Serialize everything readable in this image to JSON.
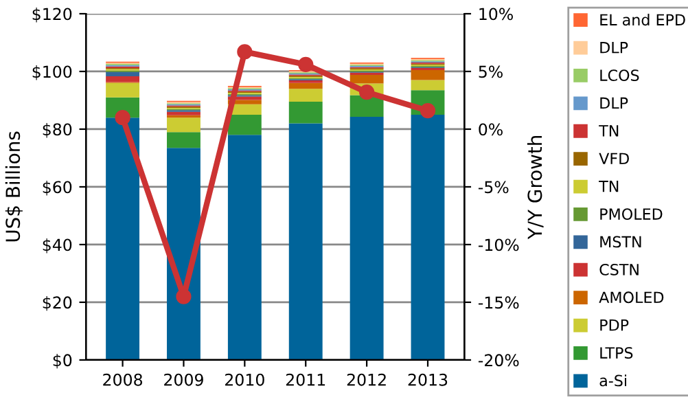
{
  "chart_data": {
    "type": "bar",
    "stacked": true,
    "categories": [
      "2008",
      "2009",
      "2010",
      "2011",
      "2012",
      "2013"
    ],
    "ylabel": "US$ Billions",
    "y2label": "Y/Y Growth",
    "ylim": [
      0,
      120
    ],
    "yticks": [
      {
        "value": 0,
        "label": "$0"
      },
      {
        "value": 20,
        "label": "$20"
      },
      {
        "value": 40,
        "label": "$40"
      },
      {
        "value": 60,
        "label": "$60"
      },
      {
        "value": 80,
        "label": "$80"
      },
      {
        "value": 100,
        "label": "$100"
      },
      {
        "value": 120,
        "label": "$120"
      }
    ],
    "y2lim": [
      -20,
      10
    ],
    "y2ticks": [
      {
        "value": -20,
        "label": "-20%"
      },
      {
        "value": -15,
        "label": "-15%"
      },
      {
        "value": -10,
        "label": "-10%"
      },
      {
        "value": -5,
        "label": "-5%"
      },
      {
        "value": 0,
        "label": "0%"
      },
      {
        "value": 5,
        "label": "5%"
      },
      {
        "value": 10,
        "label": "10%"
      }
    ],
    "grid": "y",
    "legend": "right",
    "series": [
      {
        "name": "a-Si",
        "color": "#00649a",
        "values": [
          84,
          73.5,
          78,
          82,
          84.3,
          85
        ]
      },
      {
        "name": "LTPS",
        "color": "#339933",
        "values": [
          7,
          5.5,
          7,
          7.5,
          7.5,
          8.5
        ]
      },
      {
        "name": "PDP",
        "color": "#cccc33",
        "values": [
          5,
          5,
          3.6,
          4.5,
          4,
          3.5
        ]
      },
      {
        "name": "AMOLED",
        "color": "#cc6600",
        "values": [
          0.3,
          0.8,
          1.5,
          2,
          3,
          3.5
        ]
      },
      {
        "name": "CSTN",
        "color": "#cc3333",
        "values": [
          2,
          1.2,
          1.2,
          0.9,
          0.8,
          0.7
        ]
      },
      {
        "name": "MSTN",
        "color": "#336699",
        "values": [
          1.5,
          0.6,
          0.5,
          0.4,
          0.3,
          0.3
        ]
      },
      {
        "name": "PMOLED",
        "color": "#669933",
        "values": [
          0.5,
          0.4,
          0.4,
          0.4,
          0.4,
          0.4
        ]
      },
      {
        "name": "TN",
        "color": "#cccc33",
        "values": [
          0.5,
          0.4,
          0.4,
          0.4,
          0.4,
          0.4
        ]
      },
      {
        "name": "VFD",
        "color": "#996600",
        "values": [
          0.4,
          0.4,
          0.4,
          0.4,
          0.4,
          0.4
        ]
      },
      {
        "name": "TN",
        "color": "#cc3333",
        "values": [
          0.5,
          0.4,
          0.4,
          0.4,
          0.4,
          0.4
        ]
      },
      {
        "name": "DLP",
        "color": "#6699cc",
        "values": [
          0.5,
          0.4,
          0.4,
          0.4,
          0.4,
          0.4
        ]
      },
      {
        "name": "LCOS",
        "color": "#99cc66",
        "values": [
          0.4,
          0.4,
          0.4,
          0.4,
          0.4,
          0.4
        ]
      },
      {
        "name": "DLP",
        "color": "#ffcc99",
        "values": [
          0.4,
          0.4,
          0.4,
          0.4,
          0.4,
          0.4
        ]
      },
      {
        "name": "EL and EPD",
        "color": "#ff6633",
        "values": [
          0.4,
          0.4,
          0.4,
          0.4,
          0.4,
          0.4
        ]
      },
      {
        "type": "line",
        "axis": "y2",
        "color": "#cc3333",
        "marker": "circle",
        "values": [
          1,
          -14.5,
          6.7,
          5.6,
          3.2,
          1.6
        ]
      }
    ]
  }
}
